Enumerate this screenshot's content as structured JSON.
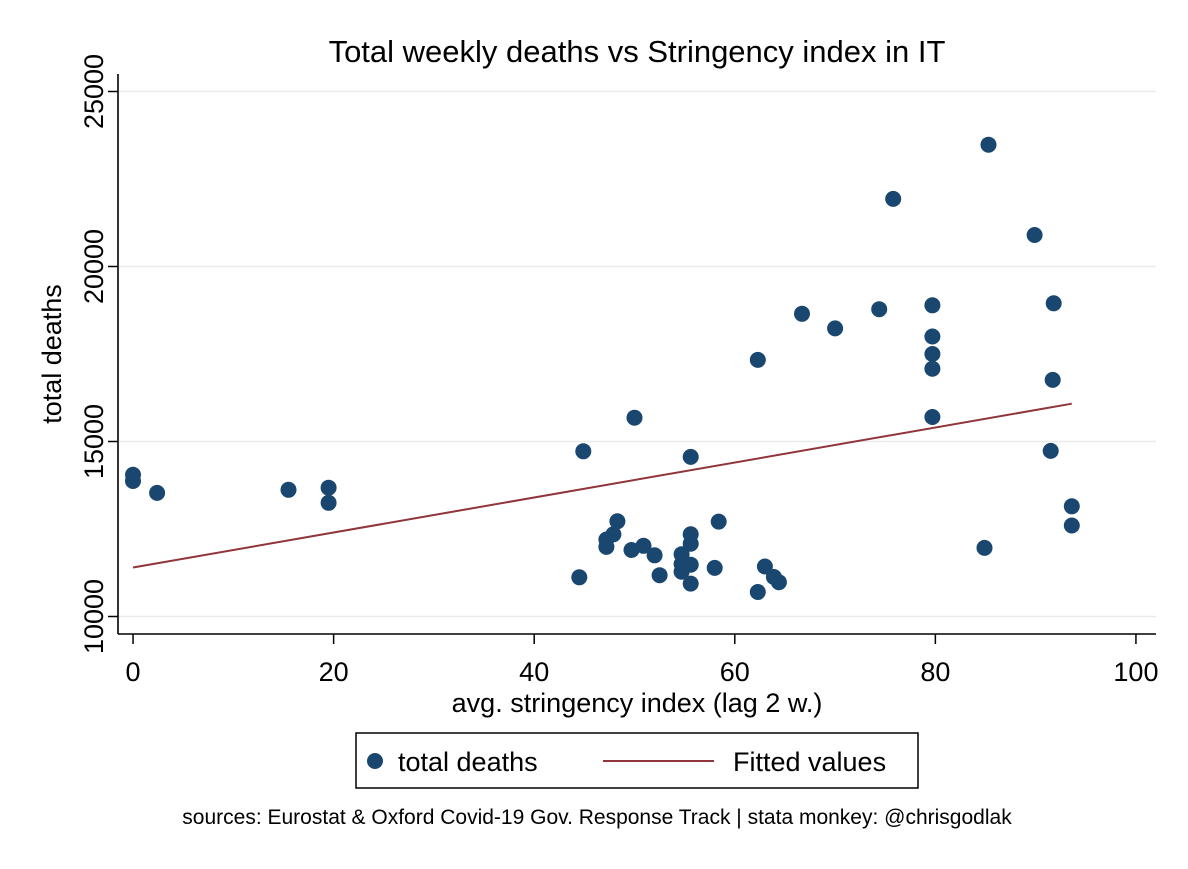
{
  "chart_data": {
    "type": "scatter",
    "title": "Total weekly deaths vs Stringency index in IT",
    "xlabel": "avg. stringency index (lag 2 w.)",
    "ylabel": "total deaths",
    "xlim": [
      -1.5,
      102
    ],
    "ylim": [
      9500,
      25500
    ],
    "xticks": [
      "0",
      "20",
      "40",
      "60",
      "80",
      "100"
    ],
    "yticks": [
      "10000",
      "15000",
      "20000",
      "25000"
    ],
    "grid": "horizontal",
    "legend_position": "bottom",
    "series": [
      {
        "name": "total deaths",
        "kind": "scatter",
        "color": "#1a476f",
        "points": [
          [
            0,
            14050
          ],
          [
            0,
            13870
          ],
          [
            2.4,
            13530
          ],
          [
            15.5,
            13620
          ],
          [
            19.5,
            13680
          ],
          [
            19.5,
            13250
          ],
          [
            44.5,
            11120
          ],
          [
            44.9,
            14720
          ],
          [
            47.2,
            12200
          ],
          [
            47.2,
            11990
          ],
          [
            47.9,
            12350
          ],
          [
            48.3,
            12720
          ],
          [
            49.7,
            11900
          ],
          [
            50.0,
            15680
          ],
          [
            50.9,
            12020
          ],
          [
            52.0,
            11750
          ],
          [
            52.5,
            11180
          ],
          [
            54.7,
            11780
          ],
          [
            54.7,
            11500
          ],
          [
            54.7,
            11280
          ],
          [
            55.6,
            14560
          ],
          [
            55.6,
            12350
          ],
          [
            55.6,
            12080
          ],
          [
            55.6,
            11480
          ],
          [
            55.6,
            10940
          ],
          [
            58.0,
            11390
          ],
          [
            58.4,
            12710
          ],
          [
            62.3,
            10700
          ],
          [
            62.3,
            17330
          ],
          [
            63.0,
            11430
          ],
          [
            63.9,
            11130
          ],
          [
            64.4,
            10980
          ],
          [
            66.7,
            18650
          ],
          [
            70.0,
            18230
          ],
          [
            74.4,
            18780
          ],
          [
            75.8,
            21930
          ],
          [
            79.7,
            18890
          ],
          [
            79.7,
            18000
          ],
          [
            79.7,
            17500
          ],
          [
            79.7,
            17080
          ],
          [
            79.7,
            15700
          ],
          [
            84.9,
            11960
          ],
          [
            85.3,
            23480
          ],
          [
            89.9,
            20900
          ],
          [
            91.5,
            14730
          ],
          [
            91.7,
            16760
          ],
          [
            91.8,
            18950
          ],
          [
            93.6,
            13150
          ],
          [
            93.6,
            12600
          ]
        ]
      },
      {
        "name": "Fitted values",
        "kind": "line",
        "color": "#90353b",
        "points": [
          [
            0,
            11400
          ],
          [
            93.6,
            16080
          ]
        ]
      }
    ],
    "legend": [
      "total deaths",
      "Fitted values"
    ],
    "footer": "sources: Eurostat & Oxford Covid-19 Gov. Response Track | stata monkey: @chrisgodlak"
  }
}
